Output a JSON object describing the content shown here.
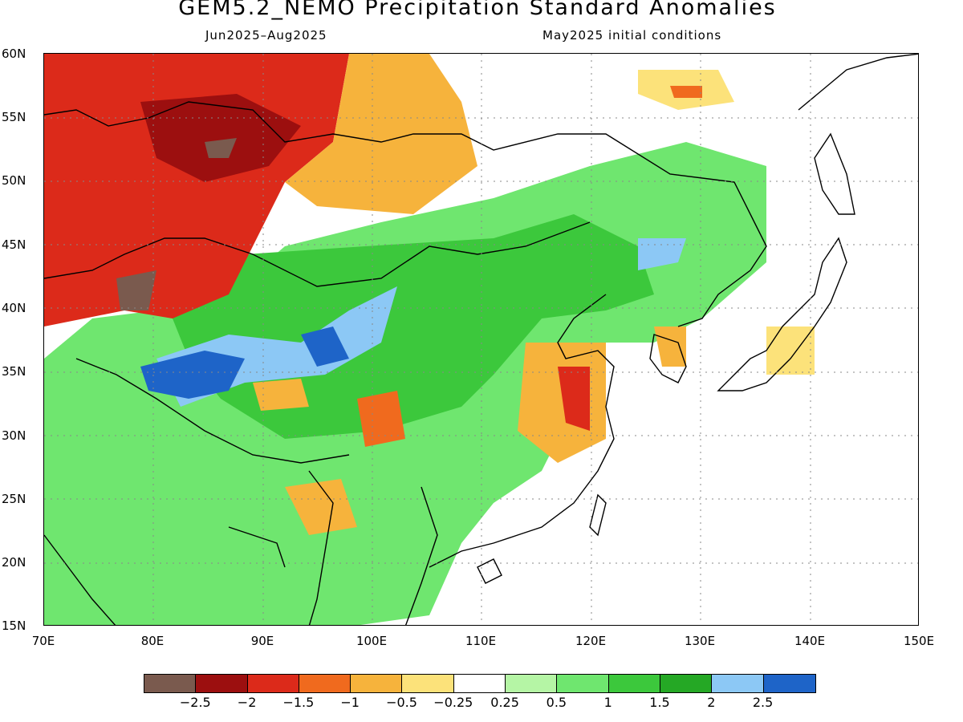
{
  "title": "GEM5.2_NEMO Precipitation Standard Anomalies",
  "subtitle_left": "Jun2025–Aug2025",
  "subtitle_right": "May2025 initial conditions",
  "lat_labels": [
    "60N",
    "55N",
    "50N",
    "45N",
    "40N",
    "35N",
    "30N",
    "25N",
    "20N",
    "15N"
  ],
  "lon_labels": [
    "70E",
    "80E",
    "90E",
    "100E",
    "110E",
    "120E",
    "130E",
    "140E",
    "150E"
  ],
  "colorbar": {
    "colors": [
      "#7a5a4e",
      "#9c0f0f",
      "#dc2a1a",
      "#f06a1e",
      "#f6b33c",
      "#fce27a",
      "#ffffff",
      "#b5f5a5",
      "#6fe66f",
      "#3cc83c",
      "#25a825",
      "#8cc8f5",
      "#1e64c8"
    ],
    "labels": [
      "−2.5",
      "−2",
      "−1.5",
      "−1",
      "−0.5",
      "−0.25",
      "0.25",
      "0.5",
      "1",
      "1.5",
      "2",
      "2.5"
    ]
  }
}
